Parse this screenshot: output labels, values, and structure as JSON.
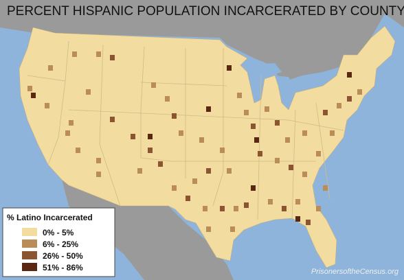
{
  "title": "PERCENT HISPANIC POPULATION INCARCERATED BY COUNTY",
  "legend": {
    "title": "% Latino Incarcerated",
    "items": [
      {
        "label": "0% -  5%",
        "color": "#f3dc9f"
      },
      {
        "label": "6% - 25%",
        "color": "#b98c58"
      },
      {
        "label": "26% - 50%",
        "color": "#8a5530"
      },
      {
        "label": "51% - 86%",
        "color": "#5a2812"
      }
    ]
  },
  "credit": "PrisonersoftheCensus.org"
}
